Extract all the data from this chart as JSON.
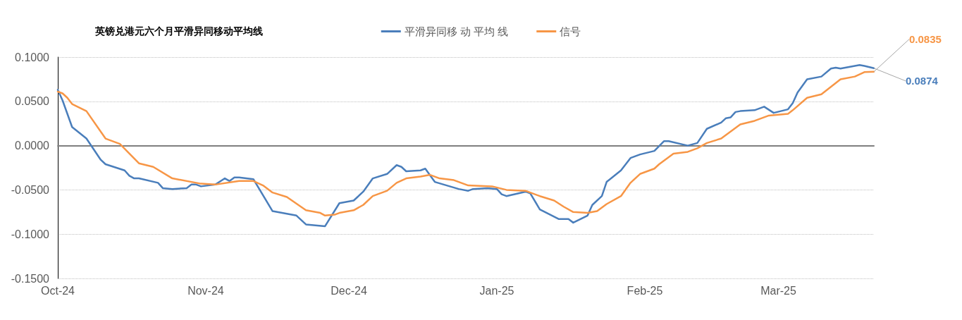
{
  "chart_data": {
    "type": "line",
    "title": "英镑兑港元六个月平滑异同移动平均线",
    "xlim": [
      "2024-10-01",
      "2025-03-21"
    ],
    "xticks": [
      {
        "value": "2024-10-01",
        "label": "Oct-24"
      },
      {
        "value": "2024-11-01",
        "label": "Nov-24"
      },
      {
        "value": "2024-12-01",
        "label": "Dec-24"
      },
      {
        "value": "2025-01-01",
        "label": "Jan-25"
      },
      {
        "value": "2025-02-01",
        "label": "Feb-25"
      },
      {
        "value": "2025-03-01",
        "label": "Mar-25"
      }
    ],
    "ylim": [
      -0.15,
      0.1
    ],
    "yticks": [
      {
        "value": -0.15,
        "label": "-0.1500"
      },
      {
        "value": -0.1,
        "label": "-0.1000"
      },
      {
        "value": -0.05,
        "label": "-0.0500"
      },
      {
        "value": 0,
        "label": "0.0000"
      },
      {
        "value": 0.05,
        "label": "0.0500"
      },
      {
        "value": 0.1,
        "label": "0.1000"
      }
    ],
    "grid": "y",
    "legend": "top",
    "marker": "none",
    "line_style": "solid",
    "series": [
      {
        "name": "平滑异同移 动 平均 线",
        "color": "#4a7ebb",
        "x": [
          "2024-10-01",
          "2024-10-02",
          "2024-10-04",
          "2024-10-07",
          "2024-10-10",
          "2024-10-11",
          "2024-10-15",
          "2024-10-16",
          "2024-10-17",
          "2024-10-18",
          "2024-10-22",
          "2024-10-23",
          "2024-10-25",
          "2024-10-28",
          "2024-10-29",
          "2024-10-30",
          "2024-10-31",
          "2024-11-03",
          "2024-11-05",
          "2024-11-06",
          "2024-11-07",
          "2024-11-08",
          "2024-11-11",
          "2024-11-15",
          "2024-11-20",
          "2024-11-22",
          "2024-11-26",
          "2024-11-29",
          "2024-12-02",
          "2024-12-04",
          "2024-12-06",
          "2024-12-09",
          "2024-12-11",
          "2024-12-12",
          "2024-12-13",
          "2024-12-16",
          "2024-12-17",
          "2024-12-19",
          "2024-12-24",
          "2024-12-26",
          "2024-12-27",
          "2024-12-30",
          "2025-01-01",
          "2025-01-02",
          "2025-01-03",
          "2025-01-07",
          "2025-01-08",
          "2025-01-10",
          "2025-01-14",
          "2025-01-16",
          "2025-01-17",
          "2025-01-20",
          "2025-01-21",
          "2025-01-23",
          "2025-01-24",
          "2025-01-27",
          "2025-01-29",
          "2025-01-31",
          "2025-02-03",
          "2025-02-05",
          "2025-02-06",
          "2025-02-10",
          "2025-02-12",
          "2025-02-14",
          "2025-02-17",
          "2025-02-18",
          "2025-02-19",
          "2025-02-20",
          "2025-02-21",
          "2025-02-24",
          "2025-02-26",
          "2025-02-28",
          "2025-03-03",
          "2025-03-04",
          "2025-03-05",
          "2025-03-07",
          "2025-03-10",
          "2025-03-12",
          "2025-03-13",
          "2025-03-14",
          "2025-03-17",
          "2025-03-18",
          "2025-03-19",
          "2025-03-21"
        ],
        "values": [
          0.063,
          0.051,
          0.021,
          0.008,
          -0.016,
          -0.021,
          -0.028,
          -0.034,
          -0.037,
          -0.037,
          -0.042,
          -0.048,
          -0.049,
          -0.048,
          -0.044,
          -0.044,
          -0.046,
          -0.044,
          -0.037,
          -0.04,
          -0.036,
          -0.036,
          -0.038,
          -0.074,
          -0.079,
          -0.089,
          -0.091,
          -0.065,
          -0.062,
          -0.052,
          -0.037,
          -0.032,
          -0.022,
          -0.024,
          -0.029,
          -0.028,
          -0.026,
          -0.041,
          -0.049,
          -0.051,
          -0.049,
          -0.048,
          -0.049,
          -0.055,
          -0.057,
          -0.052,
          -0.054,
          -0.072,
          -0.083,
          -0.083,
          -0.087,
          -0.079,
          -0.067,
          -0.057,
          -0.041,
          -0.028,
          -0.014,
          -0.01,
          -0.006,
          0.005,
          0.005,
          0.0,
          0.003,
          0.019,
          0.026,
          0.031,
          0.032,
          0.038,
          0.039,
          0.04,
          0.044,
          0.037,
          0.041,
          0.048,
          0.06,
          0.075,
          0.078,
          0.087,
          0.088,
          0.087,
          0.09,
          0.091,
          0.09,
          0.0874
        ],
        "value_labels": [
          null,
          null,
          null,
          null,
          null,
          null,
          null,
          null,
          null,
          null,
          null,
          null,
          null,
          null,
          null,
          null,
          null,
          null,
          null,
          null,
          null,
          null,
          null,
          null,
          null,
          null,
          null,
          null,
          null,
          null,
          null,
          null,
          null,
          null,
          null,
          null,
          null,
          null,
          null,
          null,
          null,
          null,
          null,
          null,
          null,
          null,
          null,
          null,
          null,
          null,
          null,
          null,
          null,
          null,
          null,
          null,
          null,
          null,
          null,
          null,
          null,
          null,
          null,
          null,
          null,
          null,
          null,
          null,
          null,
          null,
          null,
          null,
          null,
          null,
          null,
          null,
          null,
          null,
          null,
          null,
          null,
          null,
          null,
          "0.0874"
        ]
      },
      {
        "name": "信号",
        "color": "#f79646",
        "x": [
          "2024-10-01",
          "2024-10-02",
          "2024-10-03",
          "2024-10-04",
          "2024-10-07",
          "2024-10-11",
          "2024-10-14",
          "2024-10-18",
          "2024-10-21",
          "2024-10-25",
          "2024-10-31",
          "2024-11-03",
          "2024-11-08",
          "2024-11-11",
          "2024-11-13",
          "2024-11-15",
          "2024-11-18",
          "2024-11-22",
          "2024-11-25",
          "2024-11-26",
          "2024-11-28",
          "2024-11-29",
          "2024-12-02",
          "2024-12-04",
          "2024-12-06",
          "2024-12-09",
          "2024-12-11",
          "2024-12-13",
          "2024-12-16",
          "2024-12-18",
          "2024-12-20",
          "2024-12-23",
          "2024-12-26",
          "2024-12-31",
          "2025-01-03",
          "2025-01-07",
          "2025-01-10",
          "2025-01-13",
          "2025-01-15",
          "2025-01-17",
          "2025-01-20",
          "2025-01-22",
          "2025-01-24",
          "2025-01-27",
          "2025-01-29",
          "2025-01-31",
          "2025-02-03",
          "2025-02-04",
          "2025-02-07",
          "2025-02-10",
          "2025-02-12",
          "2025-02-14",
          "2025-02-17",
          "2025-02-21",
          "2025-02-24",
          "2025-02-27",
          "2025-03-03",
          "2025-03-04",
          "2025-03-07",
          "2025-03-10",
          "2025-03-14",
          "2025-03-17",
          "2025-03-19",
          "2025-03-21"
        ],
        "values": [
          0.061,
          0.059,
          0.054,
          0.047,
          0.039,
          0.008,
          0.002,
          -0.02,
          -0.024,
          -0.037,
          -0.043,
          -0.044,
          -0.04,
          -0.04,
          -0.045,
          -0.053,
          -0.058,
          -0.073,
          -0.076,
          -0.079,
          -0.078,
          -0.076,
          -0.073,
          -0.067,
          -0.057,
          -0.051,
          -0.042,
          -0.037,
          -0.035,
          -0.033,
          -0.037,
          -0.039,
          -0.045,
          -0.046,
          -0.05,
          -0.051,
          -0.057,
          -0.062,
          -0.069,
          -0.075,
          -0.076,
          -0.074,
          -0.066,
          -0.057,
          -0.042,
          -0.032,
          -0.026,
          -0.021,
          -0.009,
          -0.007,
          -0.003,
          0.003,
          0.008,
          0.024,
          0.028,
          0.034,
          0.036,
          0.04,
          0.054,
          0.058,
          0.075,
          0.078,
          0.083,
          0.0835
        ],
        "value_labels": [
          null,
          null,
          null,
          null,
          null,
          null,
          null,
          null,
          null,
          null,
          null,
          null,
          null,
          null,
          null,
          null,
          null,
          null,
          null,
          null,
          null,
          null,
          null,
          null,
          null,
          null,
          null,
          null,
          null,
          null,
          null,
          null,
          null,
          null,
          null,
          null,
          null,
          null,
          null,
          null,
          null,
          null,
          null,
          null,
          null,
          null,
          null,
          null,
          null,
          null,
          null,
          null,
          null,
          null,
          null,
          null,
          null,
          null,
          null,
          null,
          null,
          null,
          null,
          "0.0835"
        ]
      }
    ]
  }
}
